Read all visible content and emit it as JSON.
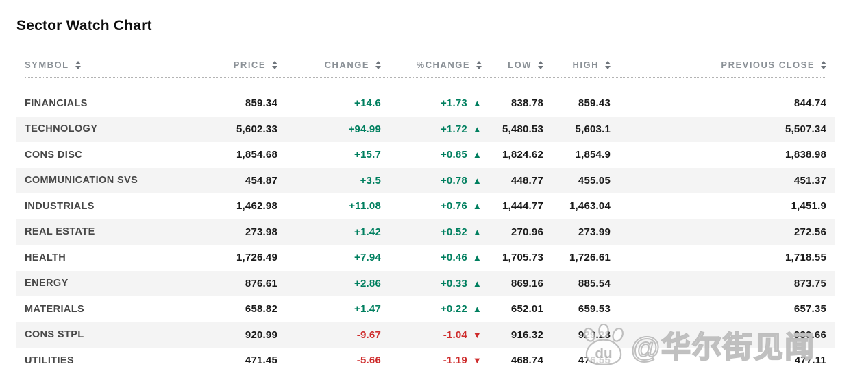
{
  "title": "Sector Watch Chart",
  "icons": {
    "up_triangle": "▲",
    "down_triangle": "▼",
    "sort": "sort-arrows"
  },
  "colors": {
    "positive": "#007F5F",
    "negative": "#CE2C2C",
    "stripe": "#F4F4F4",
    "header_text": "#8A9096",
    "symbol_text": "#474747",
    "value_text": "#1B1B1B"
  },
  "chart_data": {
    "type": "table",
    "title": "Sector Watch Chart",
    "columns": [
      {
        "key": "symbol",
        "label": "SYMBOL",
        "align": "left",
        "sortable": true
      },
      {
        "key": "price",
        "label": "PRICE",
        "align": "right",
        "sortable": true
      },
      {
        "key": "change",
        "label": "CHANGE",
        "align": "right",
        "sortable": true
      },
      {
        "key": "pct_change",
        "label": "%CHANGE",
        "align": "right",
        "sortable": true
      },
      {
        "key": "low",
        "label": "LOW",
        "align": "right",
        "sortable": true
      },
      {
        "key": "high",
        "label": "HIGH",
        "align": "right",
        "sortable": true
      },
      {
        "key": "prev_close",
        "label": "PREVIOUS CLOSE",
        "align": "right",
        "sortable": true
      }
    ],
    "rows": [
      {
        "symbol": "FINANCIALS",
        "price": "859.34",
        "change": "+14.6",
        "pct_change": "+1.73",
        "direction": "up",
        "low": "838.78",
        "high": "859.43",
        "prev_close": "844.74"
      },
      {
        "symbol": "TECHNOLOGY",
        "price": "5,602.33",
        "change": "+94.99",
        "pct_change": "+1.72",
        "direction": "up",
        "low": "5,480.53",
        "high": "5,603.1",
        "prev_close": "5,507.34"
      },
      {
        "symbol": "CONS DISC",
        "price": "1,854.68",
        "change": "+15.7",
        "pct_change": "+0.85",
        "direction": "up",
        "low": "1,824.62",
        "high": "1,854.9",
        "prev_close": "1,838.98"
      },
      {
        "symbol": "COMMUNICATION SVS",
        "price": "454.87",
        "change": "+3.5",
        "pct_change": "+0.78",
        "direction": "up",
        "low": "448.77",
        "high": "455.05",
        "prev_close": "451.37"
      },
      {
        "symbol": "INDUSTRIALS",
        "price": "1,462.98",
        "change": "+11.08",
        "pct_change": "+0.76",
        "direction": "up",
        "low": "1,444.77",
        "high": "1,463.04",
        "prev_close": "1,451.9"
      },
      {
        "symbol": "REAL ESTATE",
        "price": "273.98",
        "change": "+1.42",
        "pct_change": "+0.52",
        "direction": "up",
        "low": "270.96",
        "high": "273.99",
        "prev_close": "272.56"
      },
      {
        "symbol": "HEALTH",
        "price": "1,726.49",
        "change": "+7.94",
        "pct_change": "+0.46",
        "direction": "up",
        "low": "1,705.73",
        "high": "1,726.61",
        "prev_close": "1,718.55"
      },
      {
        "symbol": "ENERGY",
        "price": "876.61",
        "change": "+2.86",
        "pct_change": "+0.33",
        "direction": "up",
        "low": "869.16",
        "high": "885.54",
        "prev_close": "873.75"
      },
      {
        "symbol": "MATERIALS",
        "price": "658.82",
        "change": "+1.47",
        "pct_change": "+0.22",
        "direction": "up",
        "low": "652.01",
        "high": "659.53",
        "prev_close": "657.35"
      },
      {
        "symbol": "CONS STPL",
        "price": "920.99",
        "change": "-9.67",
        "pct_change": "-1.04",
        "direction": "down",
        "low": "916.32",
        "high": "929.28",
        "prev_close": "930.66"
      },
      {
        "symbol": "UTILITIES",
        "price": "471.45",
        "change": "-5.66",
        "pct_change": "-1.19",
        "direction": "down",
        "low": "468.74",
        "high": "476.55",
        "prev_close": "477.11"
      }
    ]
  },
  "watermark": {
    "logo_text": "du",
    "text": "@华尔街见闻"
  }
}
